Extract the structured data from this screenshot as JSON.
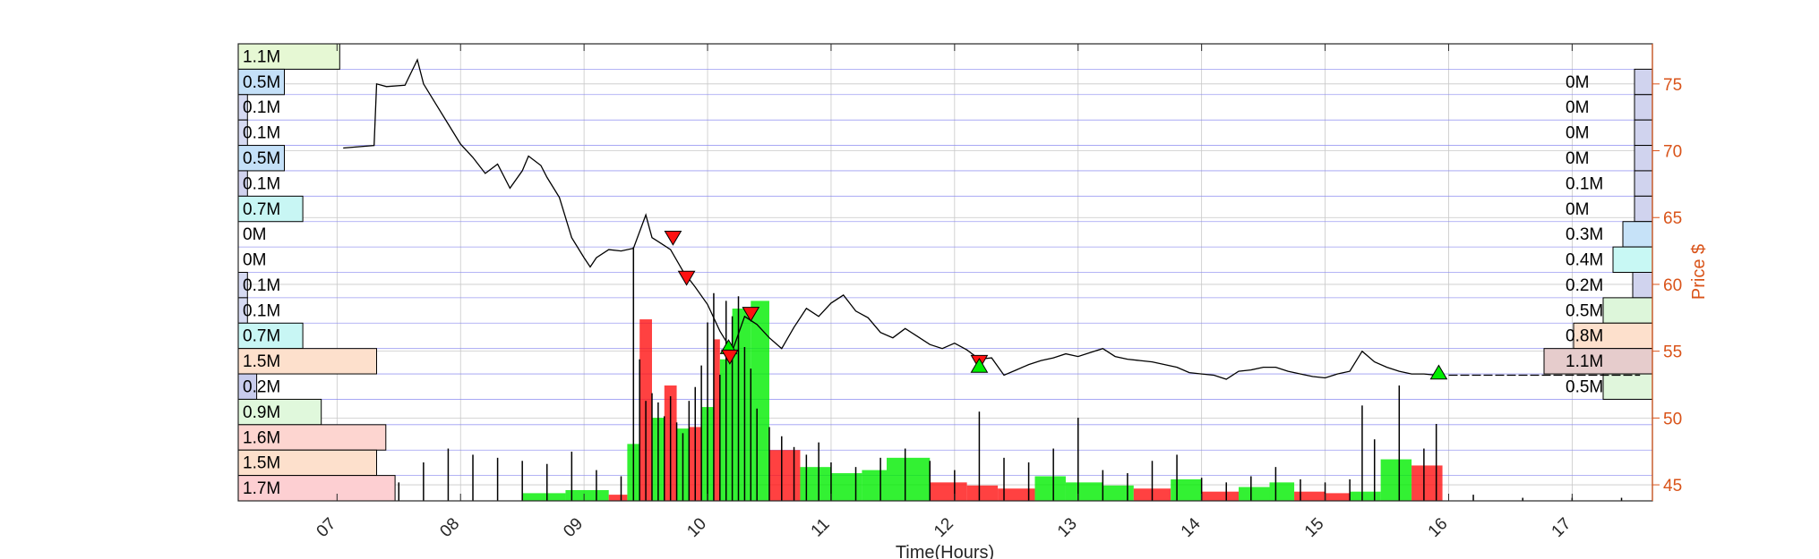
{
  "chart_data": {
    "type": "line",
    "title": "",
    "xlabel": "Time(Hours)",
    "ylabel": "Price $",
    "xlim": [
      6.2,
      17.65
    ],
    "ylim": [
      43.8,
      78
    ],
    "x_ticks": [
      "07",
      "08",
      "09",
      "10",
      "11",
      "12",
      "13",
      "14",
      "15",
      "16",
      "17"
    ],
    "y_ticks": [
      45,
      50,
      55,
      60,
      65,
      70,
      75
    ],
    "grid": true,
    "price": {
      "x": [
        7.05,
        7.3,
        7.32,
        7.4,
        7.55,
        7.65,
        7.7,
        7.8,
        7.9,
        8.0,
        8.1,
        8.2,
        8.3,
        8.4,
        8.5,
        8.55,
        8.65,
        8.7,
        8.8,
        8.9,
        9.0,
        9.05,
        9.1,
        9.2,
        9.3,
        9.4,
        9.5,
        9.55,
        9.6,
        9.7,
        9.8,
        9.9,
        10.0,
        10.1,
        10.2,
        10.3,
        10.4,
        10.5,
        10.6,
        10.7,
        10.8,
        10.9,
        11.0,
        11.1,
        11.2,
        11.3,
        11.4,
        11.5,
        11.6,
        11.7,
        11.8,
        11.9,
        12.0,
        12.1,
        12.2,
        12.3,
        12.4,
        12.5,
        12.6,
        12.7,
        12.8,
        12.9,
        13.0,
        13.1,
        13.2,
        13.3,
        13.4,
        13.5,
        13.6,
        13.7,
        13.8,
        13.9,
        14.0,
        14.1,
        14.2,
        14.3,
        14.4,
        14.5,
        14.6,
        14.7,
        14.8,
        14.9,
        15.0,
        15.1,
        15.2,
        15.3,
        15.4,
        15.5,
        15.6,
        15.7,
        15.8,
        15.9
      ],
      "y": [
        70.2,
        70.4,
        75.0,
        74.8,
        74.9,
        76.8,
        75.0,
        73.5,
        72.0,
        70.5,
        69.5,
        68.3,
        69.0,
        67.2,
        68.5,
        69.6,
        68.9,
        68.0,
        66.5,
        63.5,
        62.0,
        61.3,
        62.0,
        62.6,
        62.5,
        62.7,
        65.2,
        63.5,
        63.2,
        62.6,
        61.0,
        59.8,
        58.5,
        56.5,
        55.0,
        57.6,
        57.0,
        56.0,
        55.2,
        56.8,
        58.2,
        57.6,
        58.6,
        59.2,
        58.0,
        57.5,
        56.4,
        56.0,
        56.7,
        56.1,
        55.5,
        55.2,
        55.6,
        55.1,
        54.4,
        54.5,
        53.2,
        53.6,
        54.0,
        54.3,
        54.5,
        54.8,
        54.6,
        54.9,
        55.2,
        54.6,
        54.4,
        54.3,
        54.2,
        54.0,
        53.8,
        53.4,
        53.3,
        53.2,
        52.9,
        53.5,
        53.6,
        53.8,
        53.8,
        53.5,
        53.3,
        53.1,
        53.0,
        53.3,
        53.5,
        55.0,
        54.2,
        53.8,
        53.5,
        53.3,
        53.3,
        53.2
      ],
      "after_hours": [
        [
          16.0,
          53.2
        ],
        [
          17.0,
          53.2
        ],
        [
          17.55,
          53.2
        ]
      ]
    },
    "volume_bars": {
      "x": [
        6.5,
        6.7,
        6.9,
        7.1,
        7.3,
        7.5,
        7.7,
        7.9,
        8.1,
        8.3,
        8.5,
        8.7,
        8.9,
        9.1,
        9.3,
        9.4,
        9.45,
        9.5,
        9.55,
        9.6,
        9.65,
        9.7,
        9.75,
        9.8,
        9.85,
        9.9,
        9.95,
        10.0,
        10.05,
        10.1,
        10.15,
        10.2,
        10.25,
        10.3,
        10.35,
        10.4,
        10.5,
        10.6,
        10.7,
        10.8,
        10.9,
        11.0,
        11.2,
        11.4,
        11.6,
        11.8,
        12.0,
        12.2,
        12.4,
        12.6,
        12.8,
        13.0,
        13.2,
        13.4,
        13.6,
        13.8,
        14.0,
        14.2,
        14.4,
        14.6,
        14.8,
        15.0,
        15.2,
        15.3,
        15.4,
        15.6,
        15.8,
        15.9,
        16.2,
        16.6,
        17.0,
        17.4
      ],
      "height": [
        0.3,
        0.3,
        0.4,
        0.5,
        0.8,
        1.2,
        2.5,
        3.4,
        3.0,
        2.8,
        2.6,
        2.4,
        3.2,
        2.0,
        1.6,
        16.5,
        9.2,
        6.5,
        7.0,
        6.4,
        5.5,
        6.8,
        5.1,
        4.4,
        6.5,
        7.4,
        8.8,
        11.6,
        13.5,
        8.2,
        13.0,
        12.0,
        13.3,
        10.0,
        8.6,
        6.0,
        4.8,
        4.2,
        3.5,
        3.0,
        3.8,
        2.5,
        2.2,
        2.8,
        3.4,
        2.6,
        2.0,
        5.8,
        2.8,
        2.5,
        3.4,
        5.4,
        2.0,
        1.8,
        2.6,
        3.0,
        1.5,
        1.2,
        1.6,
        2.2,
        1.4,
        1.2,
        1.4,
        6.2,
        4.0,
        7.5,
        3.4,
        5.0,
        0.4,
        0.2,
        0.2,
        0.2
      ]
    },
    "volume_blocks": {
      "x_start": [
        8.5,
        8.85,
        9.2,
        9.35,
        9.45,
        9.55,
        9.65,
        9.75,
        9.85,
        9.95,
        10.05,
        10.1,
        10.2,
        10.35,
        10.5,
        10.75,
        11.0,
        11.25,
        11.45,
        11.8,
        12.1,
        12.35,
        12.65,
        12.9,
        13.2,
        13.45,
        13.75,
        14.0,
        14.3,
        14.55,
        14.75,
        15.0,
        15.2,
        15.45,
        15.7
      ],
      "x_end": [
        8.85,
        9.2,
        9.35,
        9.45,
        9.55,
        9.65,
        9.75,
        9.85,
        9.95,
        10.05,
        10.1,
        10.2,
        10.35,
        10.5,
        10.75,
        11.0,
        11.25,
        11.45,
        11.8,
        12.1,
        12.35,
        12.65,
        12.9,
        13.2,
        13.45,
        13.75,
        14.0,
        14.3,
        14.55,
        14.75,
        15.0,
        15.2,
        15.45,
        15.7,
        15.95
      ],
      "height": [
        0.5,
        0.7,
        0.4,
        3.7,
        11.8,
        5.4,
        7.5,
        4.7,
        4.8,
        6.1,
        10.5,
        9.2,
        12.5,
        13.0,
        3.3,
        2.2,
        1.8,
        2.0,
        2.8,
        1.2,
        1.0,
        0.8,
        1.6,
        1.2,
        1.0,
        0.8,
        1.4,
        0.6,
        0.9,
        1.2,
        0.6,
        0.5,
        0.6,
        2.7,
        2.3
      ],
      "side": [
        "buy",
        "buy",
        "sell",
        "buy",
        "sell",
        "buy",
        "sell",
        "buy",
        "sell",
        "buy",
        "sell",
        "buy",
        "buy",
        "buy",
        "sell",
        "buy",
        "buy",
        "buy",
        "buy",
        "sell",
        "sell",
        "sell",
        "buy",
        "buy",
        "buy",
        "sell",
        "buy",
        "sell",
        "buy",
        "buy",
        "sell",
        "sell",
        "buy",
        "buy",
        "sell"
      ]
    },
    "signals": [
      {
        "type": "sell",
        "x": 9.72,
        "y": 63.5
      },
      {
        "type": "sell",
        "x": 9.83,
        "y": 60.5
      },
      {
        "type": "buy",
        "x": 10.17,
        "y": 55.3
      },
      {
        "type": "sell",
        "x": 10.18,
        "y": 54.6
      },
      {
        "type": "sell",
        "x": 10.35,
        "y": 57.8
      },
      {
        "type": "sell",
        "x": 12.2,
        "y": 54.2
      },
      {
        "type": "buy",
        "x": 12.2,
        "y": 53.9
      },
      {
        "type": "buy",
        "x": 15.92,
        "y": 53.4
      }
    ],
    "volume_profile_left": {
      "labels": [
        "1.1M",
        "0.5M",
        "0.1M",
        "0.1M",
        "0.5M",
        "0.1M",
        "0.7M",
        "0M",
        "0M",
        "0.1M",
        "0.1M",
        "0.7M",
        "1.5M",
        "0.2M",
        "0.9M",
        "1.6M",
        "1.5M",
        "1.7M"
      ],
      "values": [
        1.1,
        0.5,
        0.1,
        0.1,
        0.5,
        0.1,
        0.7,
        0.0,
        0.0,
        0.1,
        0.1,
        0.7,
        1.5,
        0.2,
        0.9,
        1.6,
        1.5,
        1.7
      ],
      "colors": [
        "#e6f8d4",
        "#c4e0f8",
        "#d6daf2",
        "#d6daf2",
        "#c4e0f8",
        "#d0d2ee",
        "#c8f6f4",
        "#ffffff",
        "#ffffff",
        "#d6daf2",
        "#d6daf2",
        "#c8f6f4",
        "#fde0cc",
        "#c8cced",
        "#e0f8dc",
        "#fdd5d0",
        "#fde0cc",
        "#fdcfd2"
      ]
    },
    "volume_profile_right": {
      "labels": [
        "",
        "0M",
        "0M",
        "0M",
        "0M",
        "0.1M",
        "0M",
        "0.3M",
        "0.4M",
        "0.2M",
        "0.5M",
        "0.8M",
        "1.1M",
        "0.5M",
        "",
        "",
        "",
        ""
      ],
      "values": [
        0,
        0.03,
        0.03,
        0.03,
        0.03,
        0.1,
        0.03,
        0.3,
        0.4,
        0.2,
        0.5,
        0.8,
        1.1,
        0.5,
        0,
        0,
        0,
        0
      ],
      "colors": [
        "#ffffff",
        "#d0d3ee",
        "#d0d3ee",
        "#d0d3ee",
        "#d0d3ee",
        "#d0d3ee",
        "#d0d3ee",
        "#c6e2f8",
        "#c8f8f4",
        "#d0d3ee",
        "#ddf6da",
        "#fde0cc",
        "#e6cccc",
        "#e0f6dc",
        "#ffffff",
        "#ffffff",
        "#ffffff",
        "#ffffff"
      ]
    }
  },
  "colors": {
    "price_axis": "#d95319",
    "price_line": "#000000",
    "buy": "#00ee00",
    "sell": "#ff1111",
    "grid": "#c8c8c8",
    "band_line": "#8a8af0"
  }
}
